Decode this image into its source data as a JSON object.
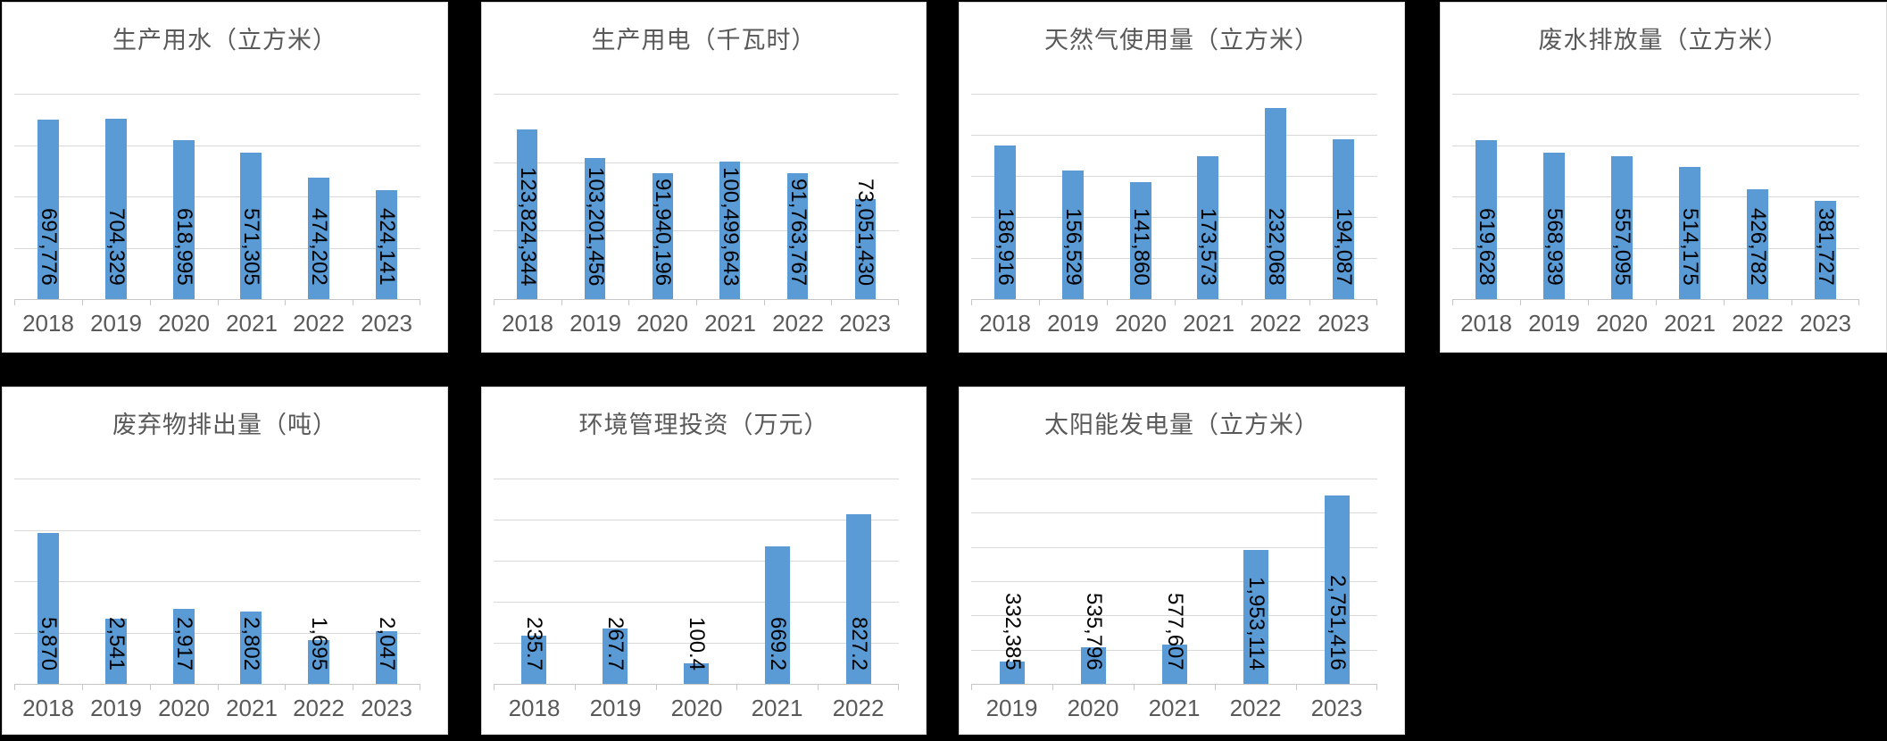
{
  "page": {
    "background": "#000000"
  },
  "colors": {
    "bar": "#5b9bd5",
    "title_text": "#595959",
    "axis_text": "#595959",
    "value_text": "#000000",
    "gridline": "#d9d9d9",
    "axis_line": "#c6c6c6",
    "panel_bg": "#ffffff",
    "panel_border": "#d9d9d9"
  },
  "chart_data": [
    {
      "type": "bar",
      "title": "生产用水（立方米）",
      "categories": [
        "2018",
        "2019",
        "2020",
        "2021",
        "2022",
        "2023"
      ],
      "values": [
        697776,
        704329,
        618995,
        571305,
        474202,
        424141
      ],
      "labels": [
        "697,776",
        "704,329",
        "618,995",
        "571,305",
        "474,202",
        "424,141"
      ],
      "xlabel": "",
      "ylabel": "",
      "ylim": [
        0,
        800000
      ],
      "gridline_step": 200000,
      "grid": true,
      "legend": "none",
      "data_label_rotation": "vertical"
    },
    {
      "type": "bar",
      "title": "生产用电（千瓦时）",
      "categories": [
        "2018",
        "2019",
        "2020",
        "2021",
        "2022",
        "2023"
      ],
      "values": [
        123824344,
        103201456,
        91940196,
        100499643,
        91763767,
        73051430
      ],
      "labels": [
        "123,824,344",
        "103,201,456",
        "91,940,196",
        "100,499,643",
        "91,763,767",
        "73,051,430"
      ],
      "xlabel": "",
      "ylabel": "",
      "ylim": [
        0,
        150000000
      ],
      "gridline_step": 50000000,
      "grid": true,
      "legend": "none",
      "data_label_rotation": "vertical"
    },
    {
      "type": "bar",
      "title": "天然气使用量（立方米）",
      "categories": [
        "2018",
        "2019",
        "2020",
        "2021",
        "2022",
        "2023"
      ],
      "values": [
        186916,
        156529,
        141860,
        173573,
        232068,
        194087
      ],
      "labels": [
        "186,916",
        "156,529",
        "141,860",
        "173,573",
        "232,068",
        "194,087"
      ],
      "xlabel": "",
      "ylabel": "",
      "ylim": [
        0,
        250000
      ],
      "gridline_step": 50000,
      "grid": true,
      "legend": "none",
      "data_label_rotation": "vertical"
    },
    {
      "type": "bar",
      "title": "废水排放量（立方米）",
      "categories": [
        "2018",
        "2019",
        "2020",
        "2021",
        "2022",
        "2023"
      ],
      "values": [
        619628,
        568939,
        557095,
        514175,
        426782,
        381727
      ],
      "labels": [
        "619,628",
        "568,939",
        "557,095",
        "514,175",
        "426,782",
        "381,727"
      ],
      "xlabel": "",
      "ylabel": "",
      "ylim": [
        0,
        800000
      ],
      "gridline_step": 200000,
      "grid": true,
      "legend": "none",
      "data_label_rotation": "vertical"
    },
    {
      "type": "bar",
      "title": "废弃物排出量（吨）",
      "categories": [
        "2018",
        "2019",
        "2020",
        "2021",
        "2022",
        "2023"
      ],
      "values": [
        5870,
        2541,
        2917,
        2802,
        1695,
        2047
      ],
      "labels": [
        "5,870",
        "2,541",
        "2,917",
        "2,802",
        "1,695",
        "2,047"
      ],
      "xlabel": "",
      "ylabel": "",
      "ylim": [
        0,
        8000
      ],
      "gridline_step": 2000,
      "grid": true,
      "legend": "none",
      "data_label_rotation": "vertical"
    },
    {
      "type": "bar",
      "title": "环境管理投资（万元）",
      "categories": [
        "2018",
        "2019",
        "2020",
        "2021",
        "2022"
      ],
      "values": [
        235.7,
        267.7,
        100.4,
        669.2,
        827.2
      ],
      "labels": [
        "235.7",
        "267.7",
        "100.4",
        "669.2",
        "827.2"
      ],
      "xlabel": "",
      "ylabel": "",
      "ylim": [
        0,
        1000
      ],
      "gridline_step": 200,
      "grid": true,
      "legend": "none",
      "data_label_rotation": "vertical"
    },
    {
      "type": "bar",
      "title": "太阳能发电量（立方米）",
      "categories": [
        "2019",
        "2020",
        "2021",
        "2022",
        "2023"
      ],
      "values": [
        332385,
        535796,
        577607,
        1953114,
        2751416
      ],
      "labels": [
        "332,385",
        "535,796",
        "577,607",
        "1,953,114",
        "2,751,416"
      ],
      "xlabel": "",
      "ylabel": "",
      "ylim": [
        0,
        3000000
      ],
      "gridline_step": 500000,
      "grid": true,
      "legend": "none",
      "data_label_rotation": "vertical"
    }
  ]
}
